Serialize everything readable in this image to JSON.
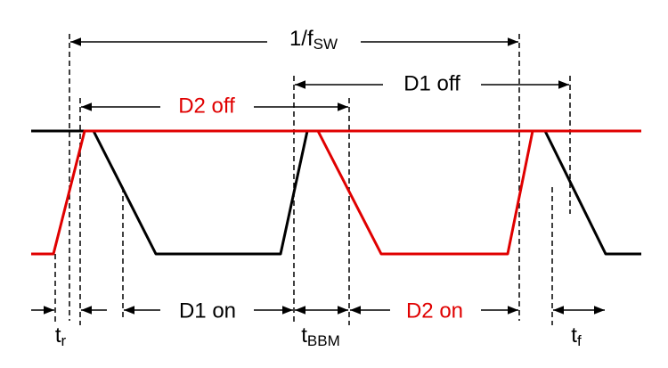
{
  "labels": {
    "period": {
      "text": "1/f",
      "sub": "SW"
    },
    "d1_off": "D1 off",
    "d2_off": "D2 off",
    "d1_on": "D1 on",
    "d2_on": "D2 on",
    "rise": {
      "text": "t",
      "sub": "r"
    },
    "bbm": {
      "text": "t",
      "sub": "BBM"
    },
    "fall": {
      "text": "t",
      "sub": "f"
    }
  }
}
